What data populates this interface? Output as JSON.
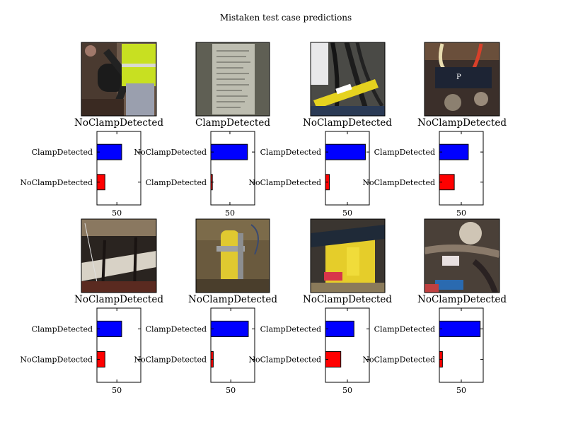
{
  "title": "Mistaken test case predictions",
  "colors": {
    "top_bar": "#0000ff",
    "bottom_bar": "#ff0000",
    "frame": "#000000"
  },
  "chart_data": [
    {
      "type": "bar",
      "orientation": "horizontal",
      "image_caption": "NoClampDetected",
      "image_content": "workers in high-visibility vests holding a black pipe in a trench",
      "categories": [
        "ClampDetected",
        "NoClampDetected"
      ],
      "values": [
        56,
        35
      ],
      "xticks": [
        50
      ],
      "xlim": [
        25,
        80
      ]
    },
    {
      "type": "bar",
      "orientation": "horizontal",
      "image_caption": "ClampDetected",
      "image_content": "photo of a paper document with printed text",
      "categories": [
        "NoClampDetected",
        "ClampDetected"
      ],
      "values": [
        96,
        4
      ],
      "xticks": [
        50
      ],
      "xlim": [
        0,
        115
      ]
    },
    {
      "type": "bar",
      "orientation": "horizontal",
      "image_caption": "NoClampDetected",
      "image_content": "yellow marker tube near black cables",
      "categories": [
        "ClampDetected",
        "NoClampDetected"
      ],
      "values": [
        91,
        9
      ],
      "xticks": [
        50
      ],
      "xlim": [
        0,
        100
      ]
    },
    {
      "type": "bar",
      "orientation": "horizontal",
      "image_caption": "NoClampDetected",
      "image_content": "pipe fitting with red wire in excavation",
      "categories": [
        "ClampDetected",
        "NoClampDetected"
      ],
      "values": [
        66,
        34
      ],
      "xticks": [
        50
      ],
      "xlim": [
        0,
        100
      ]
    },
    {
      "type": "bar",
      "orientation": "horizontal",
      "image_caption": "NoClampDetected",
      "image_content": "grey pipe with hanging straps in dark trench",
      "categories": [
        "ClampDetected",
        "NoClampDetected"
      ],
      "values": [
        56,
        35
      ],
      "xticks": [
        50
      ],
      "xlim": [
        25,
        80
      ]
    },
    {
      "type": "bar",
      "orientation": "horizontal",
      "image_caption": "NoClampDetected",
      "image_content": "yellow pipe with clamp in muddy hole",
      "categories": [
        "ClampDetected",
        "NoClampDetected"
      ],
      "values": [
        94,
        6
      ],
      "xticks": [
        50
      ],
      "xlim": [
        0,
        110
      ]
    },
    {
      "type": "bar",
      "orientation": "horizontal",
      "image_caption": "NoClampDetected",
      "image_content": "yellow pipe fitting with black strap",
      "categories": [
        "ClampDetected",
        "NoClampDetected"
      ],
      "values": [
        65,
        35
      ],
      "xticks": [
        50
      ],
      "xlim": [
        0,
        100
      ]
    },
    {
      "type": "bar",
      "orientation": "horizontal",
      "image_caption": "NoClampDetected",
      "image_content": "metal pipe joint with hose and blue fitting",
      "categories": [
        "ClampDetected",
        "NoClampDetected"
      ],
      "values": [
        93,
        7
      ],
      "xticks": [
        50
      ],
      "xlim": [
        0,
        100
      ]
    }
  ]
}
